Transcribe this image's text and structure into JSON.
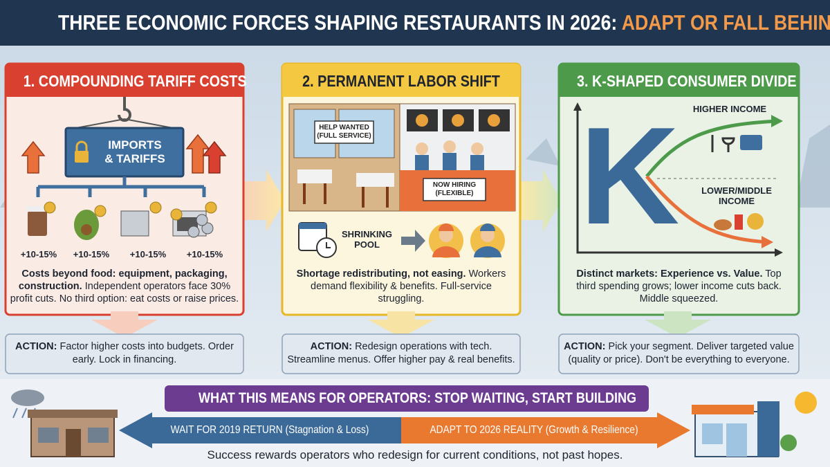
{
  "header": {
    "title": "THREE ECONOMIC FORCES SHAPING RESTAURANTS IN 2026:",
    "highlight": "ADAPT OR FALL BEHIND"
  },
  "panels": [
    {
      "title": "1. COMPOUNDING TARIFF COSTS",
      "graphic": {
        "container_label": [
          "IMPORTS",
          "& TARIFFS"
        ],
        "increases": [
          "+10-15%",
          "+10-15%",
          "+10-15%",
          "+10-15%"
        ]
      },
      "summary": "Costs beyond food: equipment, packaging, construction.",
      "detail": "Independent operators face 30% profit cuts. No third option: eat costs or raise prices.",
      "action_label": "ACTION:",
      "action": "Factor higher costs into budgets. Order early. Lock in financing."
    },
    {
      "title": "2. PERMANENT LABOR SHIFT",
      "graphic": {
        "sign_left": [
          "HELP WANTED",
          "(FULL SERVICE)"
        ],
        "sign_right": [
          "NOW HIRING",
          "(FLEXIBLE)"
        ],
        "pool_label": [
          "SHRINKING",
          "POOL"
        ]
      },
      "summary": "Shortage redistributing, not easing.",
      "detail": "Workers demand flexibility & benefits. Full-service struggling.",
      "action_label": "ACTION:",
      "action": "Redesign operations with tech. Streamline menus. Offer higher pay & real benefits."
    },
    {
      "title": "3. K-SHAPED CONSUMER DIVIDE",
      "graphic": {
        "letter": "K",
        "upper_label": "HIGHER INCOME",
        "lower_label": [
          "LOWER/MIDDLE",
          "INCOME"
        ]
      },
      "summary": "Distinct markets: Experience vs. Value.",
      "detail": "Top third spending grows; lower income cuts back. Middle squeezed.",
      "action_label": "ACTION:",
      "action": "Pick your segment. Deliver targeted value (quality or price). Don't be everything to everyone."
    }
  ],
  "bottom": {
    "banner": "WHAT THIS MEANS FOR OPERATORS: STOP WAITING, START BUILDING",
    "left_path": {
      "label": "WAIT FOR 2019 RETURN",
      "note": "(Stagnation & Loss)"
    },
    "right_path": {
      "label": "ADAPT TO 2026 REALITY",
      "note": "(Growth & Resilience)"
    },
    "footer": "Success rewards operators who redesign for current conditions, not past hopes."
  }
}
